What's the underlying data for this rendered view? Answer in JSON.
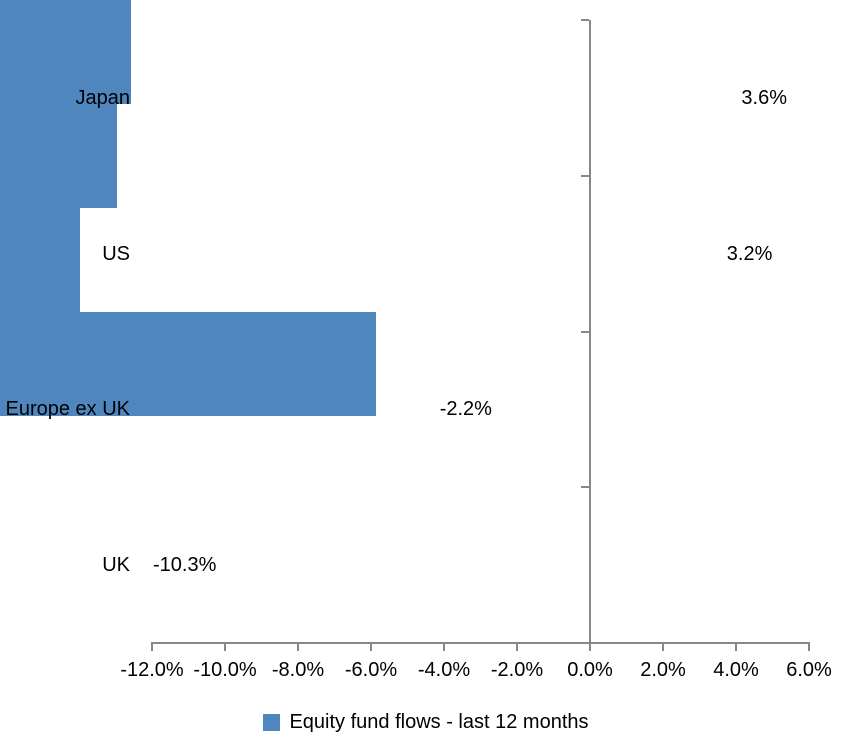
{
  "chart_data": {
    "type": "bar",
    "orientation": "horizontal",
    "title": "",
    "xlabel": "",
    "ylabel": "",
    "categories": [
      "Japan",
      "US",
      "Europe ex UK",
      "UK"
    ],
    "values": [
      3.6,
      3.2,
      -2.2,
      -10.3
    ],
    "data_labels": [
      "3.6%",
      "3.2%",
      "-2.2%",
      "-10.3%"
    ],
    "xlim": [
      -12,
      6
    ],
    "x_ticks": [
      -12,
      -10,
      -8,
      -6,
      -4,
      -2,
      0,
      2,
      4,
      6
    ],
    "x_tick_labels": [
      "-12.0%",
      "-10.0%",
      "-8.0%",
      "-6.0%",
      "-4.0%",
      "-2.0%",
      "0.0%",
      "2.0%",
      "4.0%",
      "6.0%"
    ],
    "grid": false,
    "legend": {
      "label": "Equity fund flows - last 12 months",
      "position": "bottom"
    },
    "colors": {
      "bar": "#4F86BE",
      "axis": "#878787",
      "text": "#000000",
      "background": "#ffffff"
    }
  }
}
